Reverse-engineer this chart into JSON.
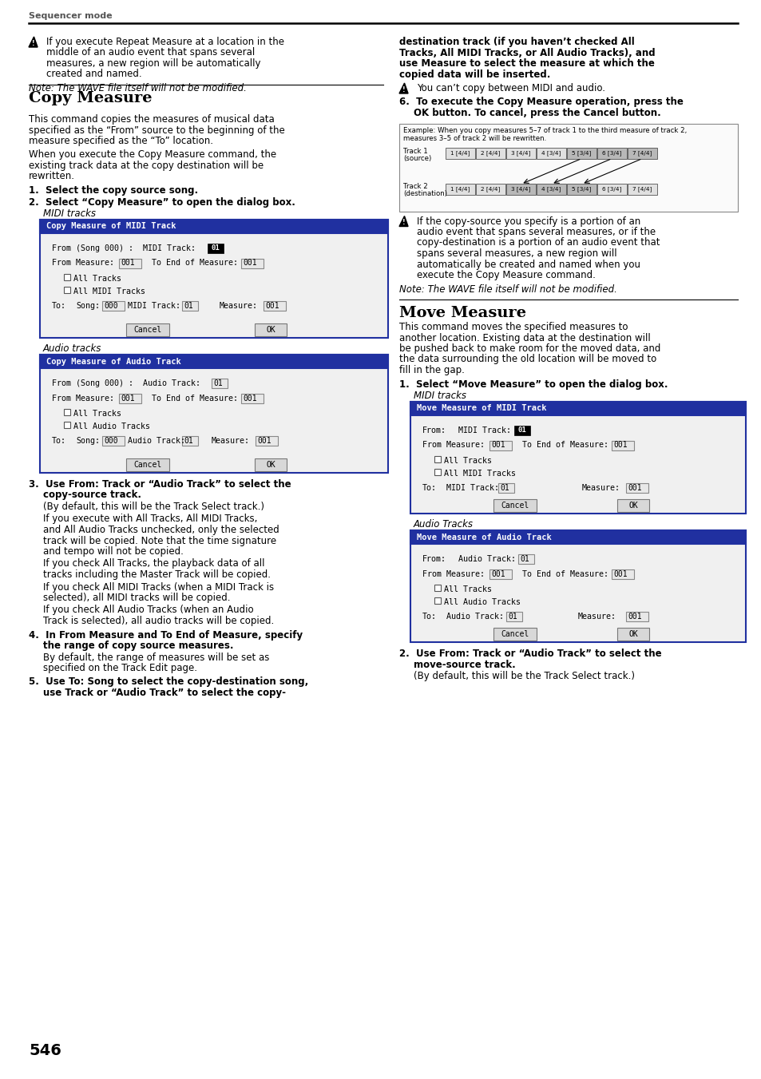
{
  "page_bg": "#ffffff",
  "header_text": "Sequencer mode",
  "page_number": "546",
  "top_left_warning": "If you execute Repeat Measure at a location in the middle of an audio event that spans several measures, a new region will be automatically created and named.",
  "top_left_note": "Note: The WAVE file itself will not be modified.",
  "top_right_bold1_line1": "destination track (if you haven’t checked All",
  "top_right_bold1_line2": "Tracks, All MIDI Tracks, or All Audio Tracks), and",
  "top_right_bold1_line3": "use Measure to select the measure at which the",
  "top_right_bold1_line4": "copied data will be inserted.",
  "top_right_warning2": "You can’t copy between MIDI and audio.",
  "top_right_step6_line1": "6.  To execute the Copy Measure operation, press the",
  "top_right_step6_line2": "OK button. To cancel, press the Cancel button.",
  "copy_measure_title": "Copy Measure",
  "copy_measure_intro1_lines": [
    "This command copies the measures of musical data",
    "specified as the “From” source to the beginning of the",
    "measure specified as the “To” location."
  ],
  "copy_measure_intro2_lines": [
    "When you execute the Copy Measure command, the",
    "existing track data at the copy destination will be",
    "rewritten."
  ],
  "step1": "1.  Select the copy source song.",
  "step2": "2.  Select “Copy Measure” to open the dialog box.",
  "midi_tracks_label": "MIDI tracks",
  "audio_tracks_label": "Audio tracks",
  "dialog_midi_title": "Copy Measure of MIDI Track",
  "dialog_move_midi_title": "Move Measure of MIDI Track",
  "dialog_audio_title": "Copy Measure of Audio Track",
  "dialog_move_audio_title": "Move Measure of Audio Track",
  "step3_line1": "3.  Use From: Track or “Audio Track” to select the",
  "step3_line2": "copy-source track.",
  "step3_text1": "(By default, this will be the Track Select track.)",
  "step3_p2_lines": [
    "If you execute with All Tracks, All MIDI Tracks,",
    "and All Audio Tracks unchecked, only the selected",
    "track will be copied. Note that the time signature",
    "and tempo will not be copied."
  ],
  "step3_p3_lines": [
    "If you check All Tracks, the playback data of all",
    "tracks including the Master Track will be copied."
  ],
  "step3_p4_lines": [
    "If you check All MIDI Tracks (when a MIDI Track is",
    "selected), all MIDI tracks will be copied."
  ],
  "step3_p5_lines": [
    "If you check All Audio Tracks (when an Audio",
    "Track is selected), all audio tracks will be copied."
  ],
  "step4_line1": "4.  In From Measure and To End of Measure, specify",
  "step4_line2": "the range of copy source measures.",
  "step4_text_lines": [
    "By default, the range of measures will be set as",
    "specified on the Track Edit page."
  ],
  "step5_line1": "5.  Use To: Song to select the copy-destination song,",
  "step5_line2": "use Track or “Audio Track” to select the copy-",
  "example_line1": "Example: When you copy measures 5–7 of track 1 to the third measure of track 2,",
  "example_line2": "measures 3–5 of track 2 will be rewritten.",
  "track1_label1": "Track 1",
  "track1_label2": "(source)",
  "track2_label1": "Track 2",
  "track2_label2": "(destination)",
  "track1_cells": [
    "1 [4/4]",
    "2 [4/4]",
    "3 [4/4]",
    "4 [3/4]",
    "5 [3/4]",
    "6 [3/4]",
    "7 [4/4]"
  ],
  "track2_cells": [
    "1 [4/4]",
    "2 [4/4]",
    "3 [4/4]",
    "4 [3/4]",
    "5 [3/4]",
    "6 [3/4]",
    "7 [4/4]"
  ],
  "track1_highlight": [
    4,
    5,
    6
  ],
  "track2_highlight": [
    2,
    3,
    4
  ],
  "right_warning3_lines": [
    "If the copy-source you specify is a portion of an",
    "audio event that spans several measures, or if the",
    "copy-destination is a portion of an audio event that",
    "spans several measures, a new region will",
    "automatically be created and named when you",
    "execute the Copy Measure command."
  ],
  "right_note2": "Note: The WAVE file itself will not be modified.",
  "move_measure_title": "Move Measure",
  "move_intro_lines": [
    "This command moves the specified measures to",
    "another location. Existing data at the destination will",
    "be pushed back to make room for the moved data, and",
    "the data surrounding the old location will be moved to",
    "fill in the gap."
  ],
  "move_step1_line1": "1.  Select “Move Measure” to open the dialog box.",
  "move_midi_label": "MIDI tracks",
  "move_audio_label": "Audio Tracks",
  "move_step2_line1": "2.  Use From: Track or “Audio Track” to select the",
  "move_step2_line2": "move-source track.",
  "move_step2_text": "(By default, this will be the Track Select track.)",
  "dialog_header_bg": "#2030a0",
  "dialog_header_fg": "#ffffff",
  "dialog_border": "#2030a0",
  "dialog_bg": "#f0f0f0",
  "dialog_field_bg": "#e0e0e0"
}
